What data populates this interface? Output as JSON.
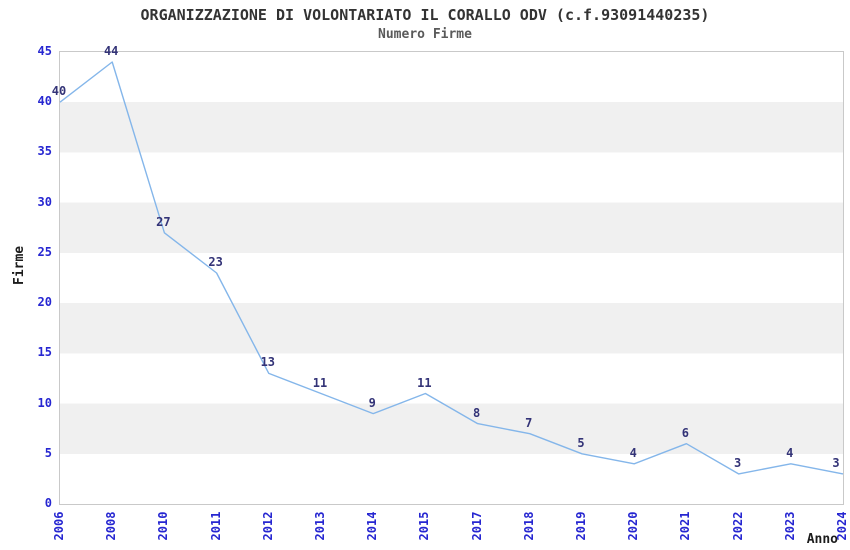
{
  "header": {
    "title": "ORGANIZZAZIONE DI VOLONTARIATO IL CORALLO ODV (c.f.93091440235)",
    "subtitle": "Numero Firme"
  },
  "chart_data": {
    "type": "line",
    "title": "ORGANIZZAZIONE DI VOLONTARIATO IL CORALLO ODV (c.f.93091440235)",
    "subtitle": "Numero Firme",
    "xlabel": "Anno",
    "ylabel": "Firme",
    "categories": [
      "2006",
      "2008",
      "2010",
      "2011",
      "2012",
      "2013",
      "2014",
      "2015",
      "2017",
      "2018",
      "2019",
      "2020",
      "2021",
      "2022",
      "2023",
      "2024"
    ],
    "values": [
      40,
      44,
      27,
      23,
      13,
      11,
      9,
      11,
      8,
      7,
      5,
      4,
      6,
      3,
      4,
      3
    ],
    "point_labels": [
      "40",
      "44",
      "27",
      "23",
      "13",
      "11",
      "9",
      "11",
      "8",
      "7",
      "5",
      "4",
      "6",
      "3",
      "4",
      "3"
    ],
    "yticks": [
      0,
      5,
      10,
      15,
      20,
      25,
      30,
      35,
      40,
      45
    ],
    "ylim": [
      0,
      45
    ],
    "grid": "horizontal-alternating-bands",
    "legend": "none",
    "colors": {
      "line": "#84b6ea",
      "point_label": "#333377",
      "tick_label": "#2626d1",
      "band_light": "#ffffff",
      "band_gray": "#f0f0f0",
      "border": "#c9c9c9",
      "title": "#333333",
      "subtitle": "#5a5a5a",
      "axis_title": "#1c1c1c"
    }
  }
}
